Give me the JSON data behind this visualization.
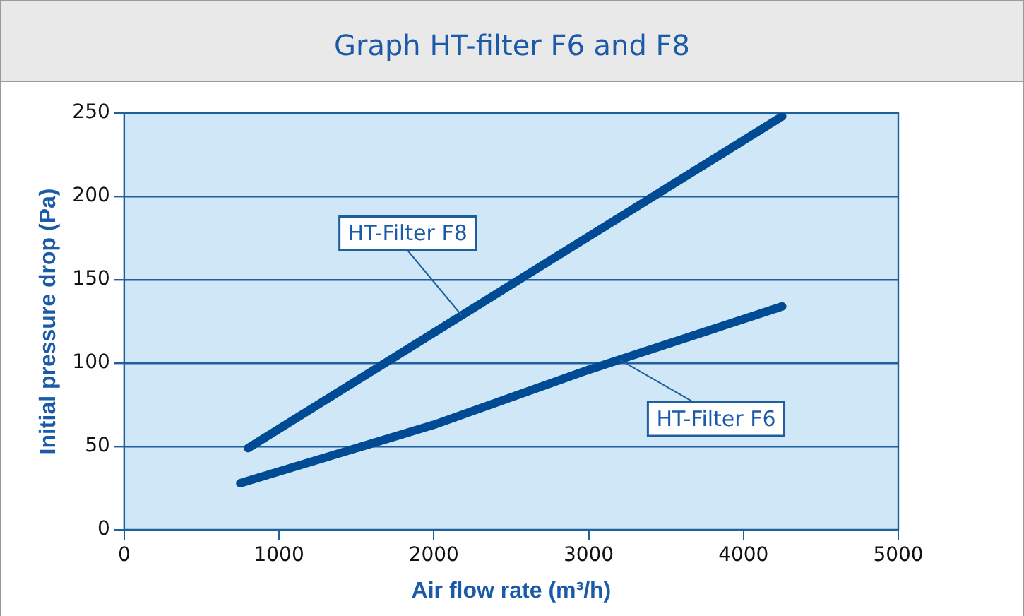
{
  "chart_data": {
    "type": "line",
    "title": "Graph HT-filter F6 and F8",
    "xlabel": "Air flow rate (m³/h)",
    "ylabel": "Initial pressure drop (Pa)",
    "series": [
      {
        "name": "HT-Filter F8",
        "color": "#004b93",
        "x": [
          800,
          4250
        ],
        "values": [
          49,
          248
        ]
      },
      {
        "name": "HT-Filter F6",
        "color": "#004b93",
        "x": [
          750,
          2000,
          3000,
          4250
        ],
        "values": [
          28,
          63,
          96,
          134
        ]
      }
    ],
    "xlim": [
      0,
      5000
    ],
    "xticks": [
      0,
      1000,
      2000,
      3000,
      4000,
      5000
    ],
    "ylim": [
      0,
      250
    ],
    "yticks": [
      0,
      50,
      100,
      150,
      200,
      250
    ],
    "grid": "y",
    "legend": false,
    "marker": "none",
    "line_style": "solid"
  }
}
